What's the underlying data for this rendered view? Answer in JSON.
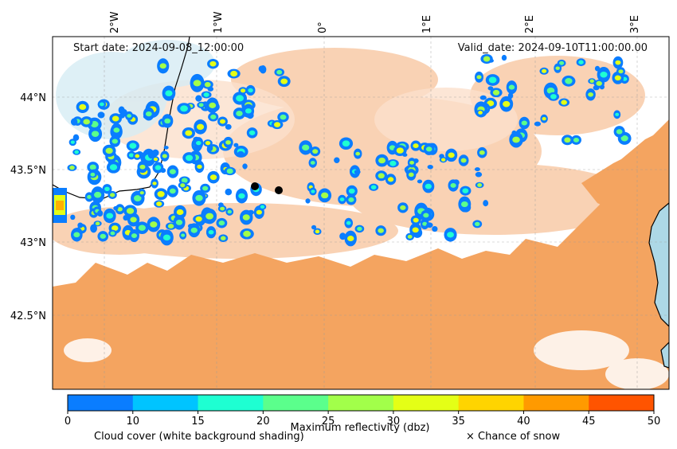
{
  "map": {
    "start_date": "Start date: 2024-09-08_12:00:00",
    "valid_date": "Valid_date: 2024-09-10T11:00:00.00",
    "lon_labels": [
      "2°W",
      "1°W",
      "0°",
      "1°E",
      "2°E",
      "3°E"
    ],
    "lat_labels": [
      "44°N",
      "43.5°N",
      "43°N",
      "42.5°N"
    ],
    "colors": {
      "land_shading": "#f4a460",
      "sea": "#add8e6",
      "cloud_background": "#ffffff",
      "border": "#000000"
    },
    "markers": [
      "black-dot",
      "black-dot"
    ]
  },
  "colorbar": {
    "ticks": [
      "0",
      "10",
      "15",
      "20",
      "25",
      "30",
      "35",
      "40",
      "45",
      "50"
    ],
    "colors": [
      "#0a7dff",
      "#00c4ff",
      "#1effd2",
      "#5bff8c",
      "#a2ff4a",
      "#e4ff16",
      "#ffd400",
      "#ff9a00",
      "#ff5400"
    ],
    "label": "Maximum reflectivity (dbz)"
  },
  "captions": {
    "cloud": "Cloud cover (white background shading)",
    "snow": "× Chance of snow"
  }
}
